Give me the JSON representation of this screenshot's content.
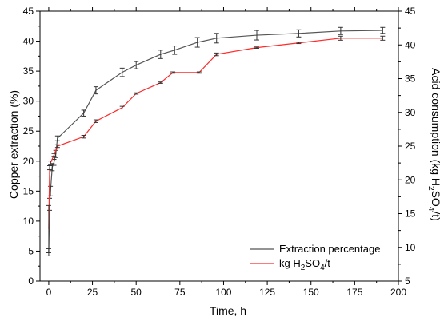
{
  "chart_data": {
    "type": "line",
    "xlabel": "Time, h",
    "ylabel_left": "Copper extraction (%)",
    "ylabel_right": {
      "prefix": "Acid consumption (kg H",
      "sub1": "2",
      "mid": "SO",
      "sub2": "4",
      "suffix": "/t)"
    },
    "xlim": [
      -5,
      200
    ],
    "ylim_left": [
      0,
      45
    ],
    "ylim_right": [
      5,
      45
    ],
    "x_ticks": [
      "0",
      "25",
      "50",
      "75",
      "100",
      "125",
      "150",
      "175",
      "200"
    ],
    "y_left_ticks": [
      "0",
      "5",
      "10",
      "15",
      "20",
      "25",
      "30",
      "35",
      "40",
      "45"
    ],
    "y_right_ticks": [
      "5",
      "10",
      "15",
      "20",
      "25",
      "30",
      "35",
      "40",
      "45"
    ],
    "legend_position": "lower-right",
    "series": [
      {
        "name": "Extraction percentage",
        "axis": "left",
        "color": "#555555",
        "points": [
          {
            "x": 0,
            "y": 4.8,
            "err": 0.6
          },
          {
            "x": 0.5,
            "y": 12.8,
            "err": 1.0
          },
          {
            "x": 1,
            "y": 15.0,
            "err": 0.8
          },
          {
            "x": 2,
            "y": 19.0,
            "err": 0.6
          },
          {
            "x": 3,
            "y": 19.8,
            "err": 0.5
          },
          {
            "x": 4,
            "y": 21.2,
            "err": 0.6
          },
          {
            "x": 5,
            "y": 23.8,
            "err": 0.4
          },
          {
            "x": 20,
            "y": 28.0,
            "err": 0.5
          },
          {
            "x": 27,
            "y": 31.8,
            "err": 0.6
          },
          {
            "x": 42,
            "y": 34.8,
            "err": 0.7
          },
          {
            "x": 50,
            "y": 36.0,
            "err": 0.6
          },
          {
            "x": 64,
            "y": 37.8,
            "err": 0.7
          },
          {
            "x": 72,
            "y": 38.5,
            "err": 0.7
          },
          {
            "x": 85,
            "y": 39.8,
            "err": 0.8
          },
          {
            "x": 96,
            "y": 40.5,
            "err": 0.8
          },
          {
            "x": 119,
            "y": 41.0,
            "err": 0.8
          },
          {
            "x": 143,
            "y": 41.3,
            "err": 0.6
          },
          {
            "x": 167,
            "y": 41.7,
            "err": 0.6
          },
          {
            "x": 191,
            "y": 41.8,
            "err": 0.5
          }
        ]
      },
      {
        "name_parts": {
          "prefix": "kg H",
          "sub1": "2",
          "mid": "SO",
          "sub2": "4",
          "suffix": "/t"
        },
        "axis": "right",
        "color": "#ff2a2a",
        "points": [
          {
            "x": 0,
            "y": 12.7,
            "err": 3.5
          },
          {
            "x": 0.5,
            "y": 21.8,
            "err": 0.3
          },
          {
            "x": 1,
            "y": 22.5,
            "err": 0.3
          },
          {
            "x": 3,
            "y": 23.7,
            "err": 0.2
          },
          {
            "x": 5,
            "y": 25.0,
            "err": 0.2
          },
          {
            "x": 20,
            "y": 26.4,
            "err": 0.2
          },
          {
            "x": 27,
            "y": 28.7,
            "err": 0.2
          },
          {
            "x": 42,
            "y": 30.7,
            "err": 0.2
          },
          {
            "x": 50,
            "y": 32.8,
            "err": 0.1
          },
          {
            "x": 64,
            "y": 34.4,
            "err": 0.1
          },
          {
            "x": 71,
            "y": 35.9,
            "err": 0.1
          },
          {
            "x": 86,
            "y": 35.9,
            "err": 0.1
          },
          {
            "x": 96,
            "y": 38.6,
            "err": 0.2
          },
          {
            "x": 119,
            "y": 39.6,
            "err": 0.1
          },
          {
            "x": 143,
            "y": 40.3,
            "err": 0.1
          },
          {
            "x": 167,
            "y": 41.0,
            "err": 0.3
          },
          {
            "x": 191,
            "y": 41.0,
            "err": 0.3
          }
        ]
      }
    ]
  }
}
